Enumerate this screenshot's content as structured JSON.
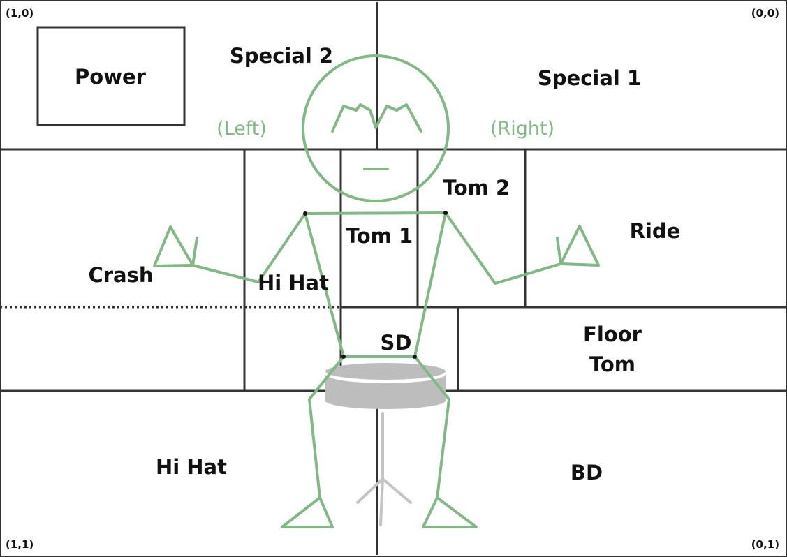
{
  "colors": {
    "grid": "#333333",
    "figure": "#82b886",
    "drum_fill": "#bdbdbd",
    "drum_stand": "#c4c4c4",
    "text": "#111111"
  },
  "corners": {
    "top_left": "(1,0)",
    "top_right": "(0,0)",
    "bottom_left": "(1,1)",
    "bottom_right": "(0,1)"
  },
  "zones": {
    "power": "Power",
    "special_2": "Special 2",
    "special_1": "Special 1",
    "crash": "Crash",
    "hi_hat_upper": "Hi Hat",
    "tom_1": "Tom 1",
    "tom_2": "Tom 2",
    "ride": "Ride",
    "sd": "SD",
    "floor_tom": [
      "Floor",
      "Tom"
    ],
    "hi_hat_lower": "Hi Hat",
    "bd": "BD"
  },
  "sides": {
    "left": "(Left)",
    "right": "(Right)"
  }
}
